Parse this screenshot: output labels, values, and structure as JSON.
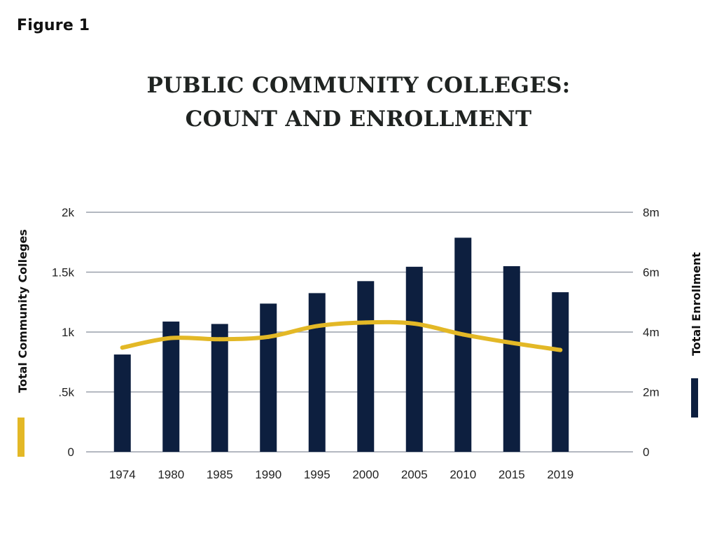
{
  "figure_label": "Figure 1",
  "chart_data": {
    "type": "bar",
    "title_line1": "PUBLIC COMMUNITY COLLEGES:",
    "title_line2": "COUNT AND ENROLLMENT",
    "categories": [
      "1974",
      "1980",
      "1985",
      "1990",
      "1995",
      "2000",
      "2005",
      "2010",
      "2015",
      "2019"
    ],
    "y_left": {
      "label": "Total Community Colleges",
      "ticks": [
        0,
        500,
        1000,
        1500,
        2000
      ],
      "tick_labels": [
        "0",
        ".5k",
        "1k",
        "1.5k",
        "2k"
      ],
      "ylim": [
        0,
        2000
      ]
    },
    "y_right": {
      "label": "Total Enrollment",
      "ticks": [
        0,
        2000000,
        4000000,
        6000000,
        8000000
      ],
      "tick_labels": [
        "0",
        "2m",
        "4m",
        "6m",
        "8m"
      ],
      "ylim": [
        0,
        8000000
      ]
    },
    "grid": true,
    "series": [
      {
        "name": "Total Enrollment",
        "type": "bar",
        "axis": "right",
        "color": "#0d1f3f",
        "values": [
          3250000,
          4350000,
          4270000,
          4950000,
          5300000,
          5700000,
          6180000,
          7150000,
          6200000,
          5330000
        ]
      },
      {
        "name": "Total Community Colleges",
        "type": "line",
        "axis": "left",
        "color": "#e3b826",
        "values": [
          870,
          950,
          940,
          960,
          1050,
          1080,
          1070,
          980,
          910,
          850
        ]
      }
    ],
    "legend_left_swatch_color": "#e3b826",
    "legend_right_swatch_color": "#0d1f3f",
    "grid_color": "#9aa0ab"
  }
}
